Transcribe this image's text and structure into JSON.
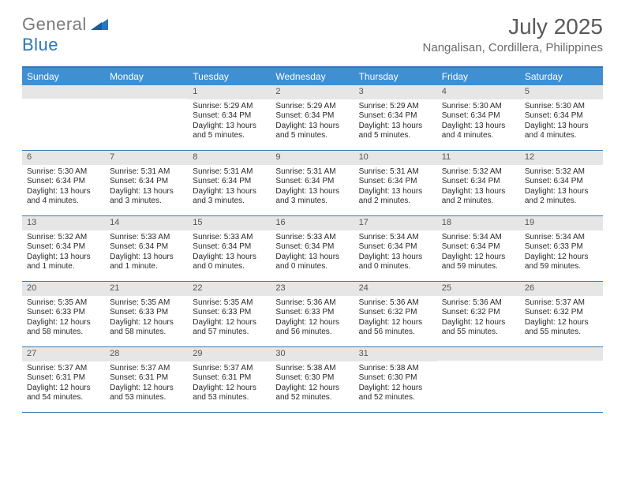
{
  "logo": {
    "word1": "General",
    "word2": "Blue"
  },
  "title": "July 2025",
  "location": "Nangalisan, Cordillera, Philippines",
  "colors": {
    "header_bar": "#3f8fd1",
    "header_rule": "#2b76bb",
    "week_rule": "#3a7bb5",
    "daynum_bg": "#e6e6e6",
    "logo_gray": "#7a7a7a",
    "logo_blue": "#2b76bb",
    "title_color": "#5a5a5a",
    "location_color": "#6a6a6a"
  },
  "day_headers": [
    "Sunday",
    "Monday",
    "Tuesday",
    "Wednesday",
    "Thursday",
    "Friday",
    "Saturday"
  ],
  "weeks": [
    [
      {
        "n": "",
        "sr": "",
        "ss": "",
        "dl1": "",
        "dl2": ""
      },
      {
        "n": "",
        "sr": "",
        "ss": "",
        "dl1": "",
        "dl2": ""
      },
      {
        "n": "1",
        "sr": "Sunrise: 5:29 AM",
        "ss": "Sunset: 6:34 PM",
        "dl1": "Daylight: 13 hours",
        "dl2": "and 5 minutes."
      },
      {
        "n": "2",
        "sr": "Sunrise: 5:29 AM",
        "ss": "Sunset: 6:34 PM",
        "dl1": "Daylight: 13 hours",
        "dl2": "and 5 minutes."
      },
      {
        "n": "3",
        "sr": "Sunrise: 5:29 AM",
        "ss": "Sunset: 6:34 PM",
        "dl1": "Daylight: 13 hours",
        "dl2": "and 5 minutes."
      },
      {
        "n": "4",
        "sr": "Sunrise: 5:30 AM",
        "ss": "Sunset: 6:34 PM",
        "dl1": "Daylight: 13 hours",
        "dl2": "and 4 minutes."
      },
      {
        "n": "5",
        "sr": "Sunrise: 5:30 AM",
        "ss": "Sunset: 6:34 PM",
        "dl1": "Daylight: 13 hours",
        "dl2": "and 4 minutes."
      }
    ],
    [
      {
        "n": "6",
        "sr": "Sunrise: 5:30 AM",
        "ss": "Sunset: 6:34 PM",
        "dl1": "Daylight: 13 hours",
        "dl2": "and 4 minutes."
      },
      {
        "n": "7",
        "sr": "Sunrise: 5:31 AM",
        "ss": "Sunset: 6:34 PM",
        "dl1": "Daylight: 13 hours",
        "dl2": "and 3 minutes."
      },
      {
        "n": "8",
        "sr": "Sunrise: 5:31 AM",
        "ss": "Sunset: 6:34 PM",
        "dl1": "Daylight: 13 hours",
        "dl2": "and 3 minutes."
      },
      {
        "n": "9",
        "sr": "Sunrise: 5:31 AM",
        "ss": "Sunset: 6:34 PM",
        "dl1": "Daylight: 13 hours",
        "dl2": "and 3 minutes."
      },
      {
        "n": "10",
        "sr": "Sunrise: 5:31 AM",
        "ss": "Sunset: 6:34 PM",
        "dl1": "Daylight: 13 hours",
        "dl2": "and 2 minutes."
      },
      {
        "n": "11",
        "sr": "Sunrise: 5:32 AM",
        "ss": "Sunset: 6:34 PM",
        "dl1": "Daylight: 13 hours",
        "dl2": "and 2 minutes."
      },
      {
        "n": "12",
        "sr": "Sunrise: 5:32 AM",
        "ss": "Sunset: 6:34 PM",
        "dl1": "Daylight: 13 hours",
        "dl2": "and 2 minutes."
      }
    ],
    [
      {
        "n": "13",
        "sr": "Sunrise: 5:32 AM",
        "ss": "Sunset: 6:34 PM",
        "dl1": "Daylight: 13 hours",
        "dl2": "and 1 minute."
      },
      {
        "n": "14",
        "sr": "Sunrise: 5:33 AM",
        "ss": "Sunset: 6:34 PM",
        "dl1": "Daylight: 13 hours",
        "dl2": "and 1 minute."
      },
      {
        "n": "15",
        "sr": "Sunrise: 5:33 AM",
        "ss": "Sunset: 6:34 PM",
        "dl1": "Daylight: 13 hours",
        "dl2": "and 0 minutes."
      },
      {
        "n": "16",
        "sr": "Sunrise: 5:33 AM",
        "ss": "Sunset: 6:34 PM",
        "dl1": "Daylight: 13 hours",
        "dl2": "and 0 minutes."
      },
      {
        "n": "17",
        "sr": "Sunrise: 5:34 AM",
        "ss": "Sunset: 6:34 PM",
        "dl1": "Daylight: 13 hours",
        "dl2": "and 0 minutes."
      },
      {
        "n": "18",
        "sr": "Sunrise: 5:34 AM",
        "ss": "Sunset: 6:34 PM",
        "dl1": "Daylight: 12 hours",
        "dl2": "and 59 minutes."
      },
      {
        "n": "19",
        "sr": "Sunrise: 5:34 AM",
        "ss": "Sunset: 6:33 PM",
        "dl1": "Daylight: 12 hours",
        "dl2": "and 59 minutes."
      }
    ],
    [
      {
        "n": "20",
        "sr": "Sunrise: 5:35 AM",
        "ss": "Sunset: 6:33 PM",
        "dl1": "Daylight: 12 hours",
        "dl2": "and 58 minutes."
      },
      {
        "n": "21",
        "sr": "Sunrise: 5:35 AM",
        "ss": "Sunset: 6:33 PM",
        "dl1": "Daylight: 12 hours",
        "dl2": "and 58 minutes."
      },
      {
        "n": "22",
        "sr": "Sunrise: 5:35 AM",
        "ss": "Sunset: 6:33 PM",
        "dl1": "Daylight: 12 hours",
        "dl2": "and 57 minutes."
      },
      {
        "n": "23",
        "sr": "Sunrise: 5:36 AM",
        "ss": "Sunset: 6:33 PM",
        "dl1": "Daylight: 12 hours",
        "dl2": "and 56 minutes."
      },
      {
        "n": "24",
        "sr": "Sunrise: 5:36 AM",
        "ss": "Sunset: 6:32 PM",
        "dl1": "Daylight: 12 hours",
        "dl2": "and 56 minutes."
      },
      {
        "n": "25",
        "sr": "Sunrise: 5:36 AM",
        "ss": "Sunset: 6:32 PM",
        "dl1": "Daylight: 12 hours",
        "dl2": "and 55 minutes."
      },
      {
        "n": "26",
        "sr": "Sunrise: 5:37 AM",
        "ss": "Sunset: 6:32 PM",
        "dl1": "Daylight: 12 hours",
        "dl2": "and 55 minutes."
      }
    ],
    [
      {
        "n": "27",
        "sr": "Sunrise: 5:37 AM",
        "ss": "Sunset: 6:31 PM",
        "dl1": "Daylight: 12 hours",
        "dl2": "and 54 minutes."
      },
      {
        "n": "28",
        "sr": "Sunrise: 5:37 AM",
        "ss": "Sunset: 6:31 PM",
        "dl1": "Daylight: 12 hours",
        "dl2": "and 53 minutes."
      },
      {
        "n": "29",
        "sr": "Sunrise: 5:37 AM",
        "ss": "Sunset: 6:31 PM",
        "dl1": "Daylight: 12 hours",
        "dl2": "and 53 minutes."
      },
      {
        "n": "30",
        "sr": "Sunrise: 5:38 AM",
        "ss": "Sunset: 6:30 PM",
        "dl1": "Daylight: 12 hours",
        "dl2": "and 52 minutes."
      },
      {
        "n": "31",
        "sr": "Sunrise: 5:38 AM",
        "ss": "Sunset: 6:30 PM",
        "dl1": "Daylight: 12 hours",
        "dl2": "and 52 minutes."
      },
      {
        "n": "",
        "sr": "",
        "ss": "",
        "dl1": "",
        "dl2": ""
      },
      {
        "n": "",
        "sr": "",
        "ss": "",
        "dl1": "",
        "dl2": ""
      }
    ]
  ]
}
